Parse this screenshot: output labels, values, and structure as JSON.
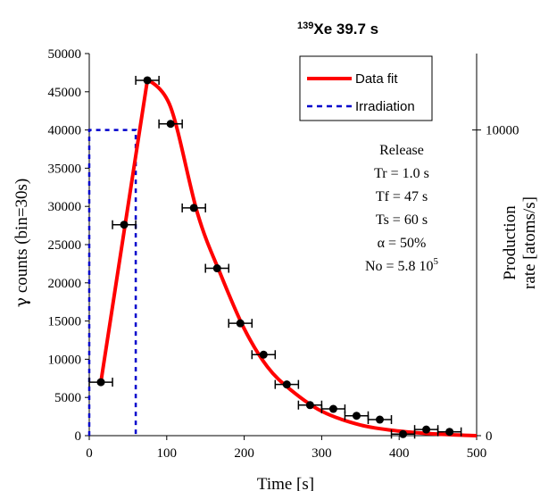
{
  "chart_data": {
    "type": "line",
    "title_sup": "139",
    "title_main": "Xe  39.7 s",
    "xlabel": "Time  [s]",
    "ylabel_gamma": "γ",
    "ylabel_rest": " counts (bin=30s)",
    "y2label_line1": "Production",
    "y2label_line2": "rate [atoms/s]",
    "xlim": [
      0,
      500
    ],
    "ylim": [
      0,
      50000
    ],
    "y2lim": [
      0,
      12500
    ],
    "x_ticks": [
      0,
      100,
      200,
      300,
      400,
      500
    ],
    "y_ticks": [
      0,
      5000,
      10000,
      15000,
      20000,
      25000,
      30000,
      35000,
      40000,
      45000,
      50000
    ],
    "y2_ticks": [
      0,
      10000
    ],
    "legend": {
      "position": "top-right",
      "fit_label": "Data fit",
      "irr_label": "Irradiation"
    },
    "data_points": {
      "x": [
        15,
        45,
        75,
        105,
        135,
        165,
        195,
        225,
        255,
        285,
        315,
        345,
        375,
        405,
        435,
        465
      ],
      "y": [
        7000,
        27600,
        46500,
        40800,
        29800,
        21900,
        14700,
        10600,
        6700,
        4000,
        3500,
        2600,
        2100,
        200,
        800,
        500
      ],
      "x_error": 15
    },
    "fit_curve": {
      "x": [
        15,
        75,
        105,
        140,
        170,
        200,
        230,
        260,
        300,
        350,
        400,
        450,
        500
      ],
      "y": [
        7000,
        46500,
        43000,
        29000,
        21000,
        14000,
        9000,
        6000,
        3200,
        1400,
        600,
        200,
        0
      ]
    },
    "irradiation": {
      "x": [
        0,
        0,
        60,
        60
      ],
      "y": [
        0,
        40000,
        40000,
        0
      ]
    },
    "annotation": {
      "line1": "Release",
      "line2": "Tr = 1.0 s",
      "line3": "Tf = 47 s",
      "line4": "Ts = 60 s",
      "line5": "α = 50%",
      "line6_base": "No = 5.8 10",
      "line6_sup": "5"
    },
    "colors": {
      "fit": "#ff0000",
      "irradiation": "#0000cc",
      "points": "#000000"
    }
  }
}
